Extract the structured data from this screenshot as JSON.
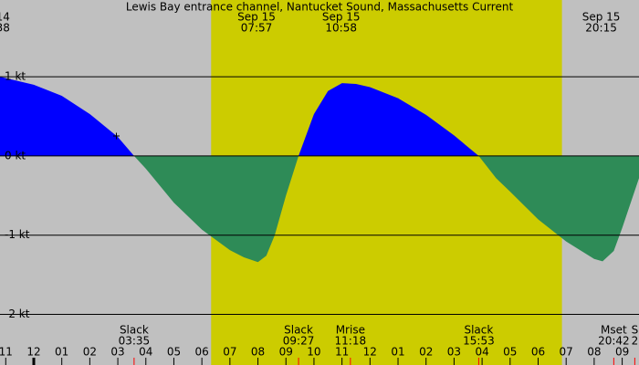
{
  "chart_data": {
    "type": "tide-current",
    "title": "Lewis Bay entrance channel, Nantucket Sound, Massachusetts Current",
    "x": [
      -1.205,
      0,
      1,
      2,
      3,
      3.58,
      4,
      5,
      6,
      7,
      7.5,
      8,
      8.3,
      8.6,
      9,
      9.45,
      10,
      10.5,
      11,
      11.5,
      12,
      13,
      14,
      15,
      15.88,
      16.5,
      17,
      18,
      19,
      20,
      20.3,
      20.7,
      21,
      21.6
    ],
    "values": [
      1.0,
      0.9,
      0.76,
      0.53,
      0.24,
      0,
      -0.16,
      -0.59,
      -0.93,
      -1.19,
      -1.28,
      -1.34,
      -1.26,
      -1.0,
      -0.5,
      0,
      0.53,
      0.82,
      0.92,
      0.91,
      0.87,
      0.73,
      0.52,
      0.26,
      0,
      -0.28,
      -0.45,
      -0.8,
      -1.08,
      -1.3,
      -1.33,
      -1.2,
      -0.91,
      -0.28
    ],
    "positive_color": "#0000ff",
    "negative_color": "#2e8b57",
    "background_color": "#c0c0c0",
    "daylight_color": "#cccc00",
    "daylight": [
      6.33,
      18.85
    ],
    "xlim": [
      -1.205,
      21.6
    ],
    "ylim": [
      -2.64,
      1.97
    ],
    "yticks": [
      {
        "value": 1,
        "label": "1 kt"
      },
      {
        "value": 0,
        "label": "0 kt"
      },
      {
        "value": -1,
        "label": "-1 kt"
      },
      {
        "value": -2,
        "label": "-2 kt"
      }
    ],
    "xticks": [
      {
        "value": -1,
        "label": "11"
      },
      {
        "value": 0,
        "label": "12"
      },
      {
        "value": 1,
        "label": "01"
      },
      {
        "value": 2,
        "label": "02"
      },
      {
        "value": 3,
        "label": "03"
      },
      {
        "value": 4,
        "label": "04"
      },
      {
        "value": 5,
        "label": "05"
      },
      {
        "value": 6,
        "label": "06"
      },
      {
        "value": 7,
        "label": "07"
      },
      {
        "value": 8,
        "label": "08"
      },
      {
        "value": 9,
        "label": "09"
      },
      {
        "value": 10,
        "label": "10"
      },
      {
        "value": 11,
        "label": "11"
      },
      {
        "value": 12,
        "label": "12"
      },
      {
        "value": 13,
        "label": "01"
      },
      {
        "value": 14,
        "label": "02"
      },
      {
        "value": 15,
        "label": "03"
      },
      {
        "value": 16,
        "label": "04"
      },
      {
        "value": 17,
        "label": "05"
      },
      {
        "value": 18,
        "label": "06"
      },
      {
        "value": 19,
        "label": "07"
      },
      {
        "value": 20,
        "label": "08"
      },
      {
        "value": 21,
        "label": "09"
      }
    ],
    "top_events": [
      {
        "x": -1.1,
        "date": "14",
        "time": "38"
      },
      {
        "x": 7.95,
        "date": "Sep 15",
        "time": "07:57"
      },
      {
        "x": 10.97,
        "date": "Sep 15",
        "time": "10:58"
      },
      {
        "x": 20.25,
        "date": "Sep 15",
        "time": "20:15"
      }
    ],
    "bottom_events": [
      {
        "x": 3.58,
        "label": "Slack",
        "time": "03:35"
      },
      {
        "x": 9.45,
        "label": "Slack",
        "time": "09:27"
      },
      {
        "x": 11.3,
        "label": "Mrise",
        "time": "11:18"
      },
      {
        "x": 15.88,
        "label": "Slack",
        "time": "15:53"
      },
      {
        "x": 20.7,
        "label": "Mset",
        "time": "20:42"
      },
      {
        "x": 21.45,
        "label": "S",
        "time": "2"
      }
    ]
  }
}
